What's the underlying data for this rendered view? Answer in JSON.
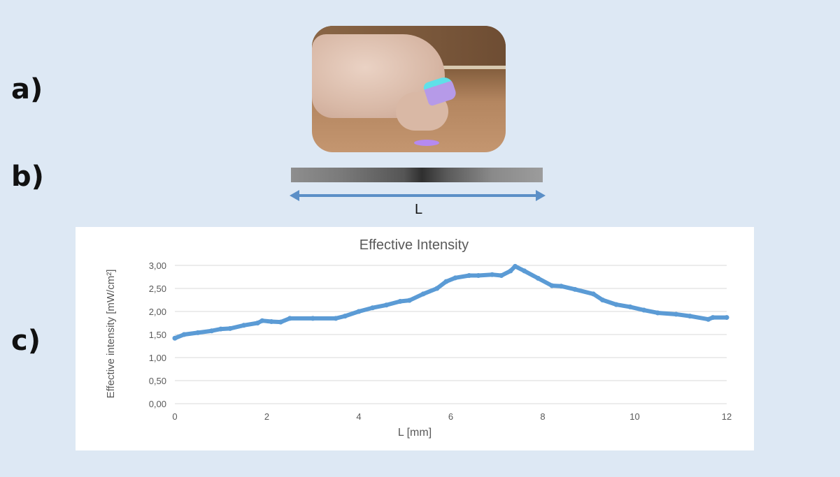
{
  "panels": {
    "a": "a)",
    "b": "b)",
    "c": "c)"
  },
  "length_label": "L",
  "colors": {
    "background": "#dde8f4",
    "series": "#5b9bd5",
    "arrow": "#5b8fc7"
  },
  "chart_data": {
    "type": "line",
    "title": "Effective Intensity",
    "xlabel": "L [mm]",
    "ylabel": "Effective intensity [mW/cm²]",
    "xlim": [
      0,
      12
    ],
    "ylim": [
      0,
      3
    ],
    "xticks": [
      "0",
      "2",
      "4",
      "6",
      "8",
      "10",
      "12"
    ],
    "yticks": [
      "0,00",
      "0,50",
      "1,00",
      "1,50",
      "2,00",
      "2,50",
      "3,00"
    ],
    "grid": "horizontal",
    "legend": "none",
    "series": [
      {
        "x": [
          0,
          0.2,
          0.5,
          0.8,
          1,
          1.2,
          1.5,
          1.8,
          1.9,
          2.1,
          2.3,
          2.5,
          3,
          3.5,
          3.7,
          4,
          4.3,
          4.6,
          4.9,
          5.1,
          5.4,
          5.7,
          5.9,
          6.1,
          6.4,
          6.6,
          6.9,
          7.1,
          7.3,
          7.4,
          7.6,
          7.9,
          8.2,
          8.4,
          8.7,
          9.1,
          9.3,
          9.6,
          9.9,
          10.2,
          10.5,
          10.9,
          11.2,
          11.6,
          11.7,
          12
        ],
        "y": [
          1.42,
          1.5,
          1.54,
          1.58,
          1.62,
          1.63,
          1.7,
          1.75,
          1.8,
          1.78,
          1.77,
          1.85,
          1.85,
          1.85,
          1.9,
          2.0,
          2.08,
          2.14,
          2.22,
          2.24,
          2.38,
          2.5,
          2.65,
          2.73,
          2.78,
          2.78,
          2.8,
          2.78,
          2.88,
          2.98,
          2.88,
          2.72,
          2.56,
          2.55,
          2.48,
          2.38,
          2.25,
          2.15,
          2.1,
          2.03,
          1.97,
          1.94,
          1.9,
          1.83,
          1.87,
          1.87
        ]
      }
    ]
  }
}
